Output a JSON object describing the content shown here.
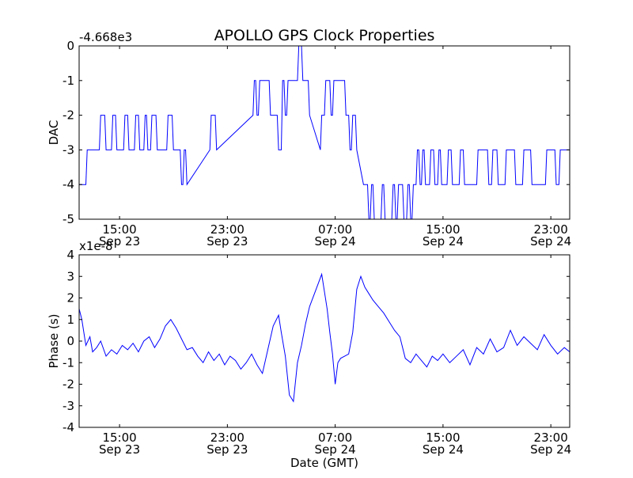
{
  "figure": {
    "title": "APOLLO GPS Clock Properties",
    "xlabel": "Date (GMT)",
    "line_color": "#0000ff"
  },
  "chart_data": [
    {
      "type": "line",
      "ylabel": "DAC",
      "offset_label": "-4.668e3",
      "ylim": [
        -5,
        0
      ],
      "yticks": [
        0,
        -1,
        -2,
        -3,
        -4,
        -5
      ],
      "ytick_labels": [
        "0",
        "-1",
        "-2",
        "-3",
        "-4",
        "-5"
      ],
      "xlim": [
        0,
        36.4
      ],
      "xticks": [
        3,
        11,
        19,
        27,
        35
      ],
      "xtick_labels": [
        [
          "15:00",
          "Sep 23"
        ],
        [
          "23:00",
          "Sep 23"
        ],
        [
          "07:00",
          "Sep 24"
        ],
        [
          "15:00",
          "Sep 24"
        ],
        [
          "23:00",
          "Sep 24"
        ]
      ],
      "series": [
        {
          "x": [
            0,
            0.5,
            0.6,
            1.5,
            1.6,
            1.9,
            2.0,
            2.4,
            2.5,
            2.7,
            2.8,
            3.3,
            3.4,
            3.6,
            3.7,
            4.1,
            4.2,
            4.4,
            4.5,
            4.8,
            4.9,
            5.0,
            5.1,
            5.3,
            5.4,
            5.7,
            5.8,
            6.5,
            6.6,
            6.9,
            7.0,
            7.5,
            7.6,
            7.7,
            7.8,
            7.9,
            8.0,
            9.7,
            9.8,
            10.1,
            10.2,
            12.9,
            13.0,
            13.1,
            13.2,
            13.3,
            13.4,
            14.1,
            14.2,
            14.7,
            14.8,
            15.0,
            15.1,
            15.2,
            15.3,
            15.4,
            15.5,
            16.2,
            16.3,
            16.5,
            16.6,
            17.0,
            17.1,
            17.9,
            18.0,
            18.2,
            18.3,
            18.6,
            18.7,
            18.8,
            18.9,
            19.7,
            19.8,
            20.0,
            20.1,
            20.2,
            20.3,
            20.5,
            20.6,
            21.1,
            21.2,
            21.4,
            21.5,
            21.6,
            21.7,
            21.8,
            21.9,
            22.4,
            22.5,
            22.6,
            22.7,
            23.2,
            23.3,
            23.4,
            23.5,
            23.6,
            23.7,
            24.0,
            24.1,
            24.3,
            24.4,
            24.5,
            24.6,
            24.7,
            24.8,
            25.0,
            25.1,
            25.2,
            25.3,
            25.4,
            25.5,
            25.6,
            25.7,
            26.0,
            26.1,
            26.3,
            26.4,
            26.6,
            26.7,
            26.8,
            26.9,
            27.3,
            27.4,
            27.6,
            27.7,
            28.2,
            28.3,
            28.5,
            28.6,
            29.5,
            29.6,
            30.3,
            30.4,
            30.6,
            30.7,
            31.0,
            31.1,
            31.6,
            31.7,
            32.3,
            32.4,
            32.9,
            33.0,
            33.5,
            33.6,
            34.6,
            34.7,
            35.3,
            35.4,
            35.6,
            35.7,
            36.4
          ],
          "y": [
            -4,
            -4,
            -3,
            -3,
            -2,
            -2,
            -3,
            -3,
            -2,
            -2,
            -3,
            -3,
            -2,
            -2,
            -3,
            -3,
            -2,
            -2,
            -3,
            -3,
            -2,
            -2,
            -3,
            -3,
            -2,
            -2,
            -3,
            -3,
            -2,
            -2,
            -3,
            -3,
            -4,
            -4,
            -3,
            -3,
            -4,
            -3,
            -2,
            -2,
            -3,
            -2,
            -1,
            -1,
            -2,
            -2,
            -1,
            -1,
            -2,
            -2,
            -3,
            -3,
            -1,
            -1,
            -2,
            -2,
            -1,
            -1,
            0,
            0,
            -1,
            -1,
            -2,
            -3,
            -2,
            -2,
            -1,
            -1,
            -2,
            -2,
            -1,
            -1,
            -2,
            -2,
            -3,
            -3,
            -2,
            -2,
            -3,
            -4,
            -4,
            -4,
            -5,
            -5,
            -4,
            -4,
            -5,
            -5,
            -4,
            -4,
            -5,
            -5,
            -4,
            -4,
            -5,
            -5,
            -4,
            -4,
            -5,
            -5,
            -4,
            -4,
            -5,
            -5,
            -4,
            -4,
            -3,
            -3,
            -4,
            -4,
            -3,
            -3,
            -4,
            -4,
            -3,
            -3,
            -4,
            -4,
            -3,
            -3,
            -4,
            -4,
            -3,
            -3,
            -4,
            -4,
            -3,
            -3,
            -4,
            -4,
            -3,
            -3,
            -4,
            -4,
            -3,
            -3,
            -4,
            -4,
            -3,
            -3,
            -4,
            -4,
            -3,
            -3,
            -4,
            -4,
            -3,
            -3,
            -4,
            -4,
            -3,
            -3
          ]
        }
      ]
    },
    {
      "type": "line",
      "ylabel": "Phase (s)",
      "offset_label": "x1e-8",
      "ylim": [
        -4,
        4
      ],
      "yticks": [
        4,
        3,
        2,
        1,
        0,
        -1,
        -2,
        -3,
        -4
      ],
      "ytick_labels": [
        "4",
        "3",
        "2",
        "1",
        "0",
        "-1",
        "-2",
        "-3",
        "-4"
      ],
      "xlim": [
        0,
        36.4
      ],
      "xticks": [
        3,
        11,
        19,
        27,
        35
      ],
      "xtick_labels": [
        [
          "15:00",
          "Sep 23"
        ],
        [
          "23:00",
          "Sep 23"
        ],
        [
          "07:00",
          "Sep 24"
        ],
        [
          "15:00",
          "Sep 24"
        ],
        [
          "23:00",
          "Sep 24"
        ]
      ],
      "series": [
        {
          "x": [
            0,
            0.2,
            0.5,
            0.8,
            1.0,
            1.3,
            1.6,
            2.0,
            2.4,
            2.8,
            3.2,
            3.6,
            4.0,
            4.4,
            4.8,
            5.2,
            5.6,
            6.0,
            6.4,
            6.8,
            7.2,
            7.6,
            8.0,
            8.4,
            8.8,
            9.2,
            9.6,
            10.0,
            10.4,
            10.8,
            11.2,
            11.6,
            12.0,
            12.4,
            12.8,
            13.2,
            13.6,
            14.0,
            14.4,
            14.8,
            15.0,
            15.3,
            15.6,
            15.9,
            16.2,
            16.5,
            16.8,
            17.1,
            17.4,
            17.7,
            18.0,
            18.2,
            18.4,
            18.6,
            18.8,
            19.0,
            19.2,
            19.4,
            19.7,
            20.0,
            20.3,
            20.6,
            20.9,
            21.2,
            21.5,
            21.8,
            22.2,
            22.6,
            23.0,
            23.4,
            23.8,
            24.2,
            24.6,
            25.0,
            25.4,
            25.8,
            26.2,
            26.6,
            27.0,
            27.5,
            28.0,
            28.5,
            29.0,
            29.5,
            30.0,
            30.5,
            31.0,
            31.5,
            32.0,
            32.5,
            33.0,
            33.5,
            34.0,
            34.5,
            35.0,
            35.5,
            36.0,
            36.4
          ],
          "y": [
            1.5,
            1.0,
            -0.2,
            0.2,
            -0.5,
            -0.3,
            0.0,
            -0.7,
            -0.4,
            -0.6,
            -0.2,
            -0.4,
            -0.1,
            -0.5,
            0.0,
            0.2,
            -0.3,
            0.1,
            0.7,
            1.0,
            0.6,
            0.1,
            -0.4,
            -0.3,
            -0.7,
            -1.0,
            -0.5,
            -0.9,
            -0.6,
            -1.1,
            -0.7,
            -0.9,
            -1.3,
            -1.0,
            -0.6,
            -1.1,
            -1.5,
            -0.4,
            0.7,
            1.2,
            0.4,
            -0.7,
            -2.5,
            -2.8,
            -1.0,
            -0.2,
            0.8,
            1.6,
            2.1,
            2.6,
            3.1,
            2.3,
            1.5,
            0.4,
            -0.6,
            -2.0,
            -1.0,
            -0.8,
            -0.7,
            -0.6,
            0.4,
            2.4,
            3.0,
            2.5,
            2.2,
            1.9,
            1.6,
            1.3,
            0.9,
            0.5,
            0.2,
            -0.8,
            -1.0,
            -0.6,
            -0.9,
            -1.2,
            -0.7,
            -0.9,
            -0.6,
            -1.0,
            -0.7,
            -0.4,
            -1.1,
            -0.3,
            -0.6,
            0.1,
            -0.5,
            -0.3,
            0.5,
            -0.2,
            0.2,
            -0.1,
            -0.4,
            0.3,
            -0.2,
            -0.6,
            -0.3,
            -0.5
          ]
        }
      ]
    }
  ]
}
